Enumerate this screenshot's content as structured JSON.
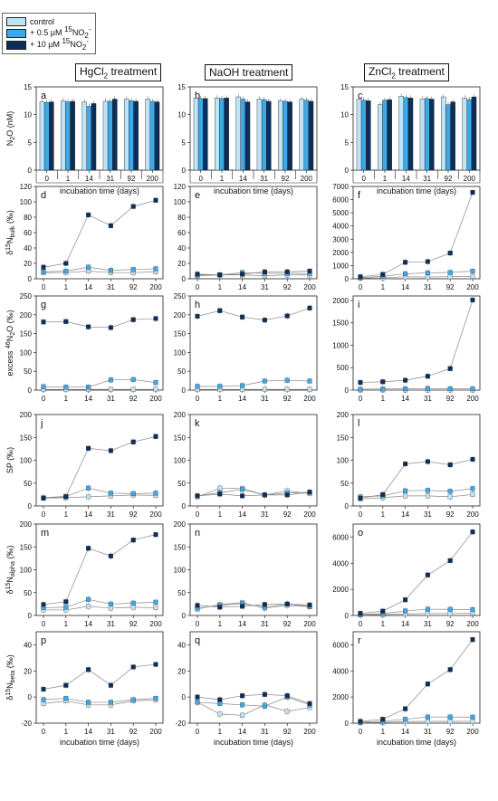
{
  "legend": {
    "items": [
      {
        "label": "control",
        "color": "#bfe4f6"
      },
      {
        "label_parts": [
          "+ 0.5 µM ",
          "15",
          "NO",
          "2",
          "-"
        ],
        "color": "#3fa8e6"
      },
      {
        "label_parts": [
          "+ 10 µM ",
          "15",
          "NO",
          "2",
          "-"
        ],
        "color": "#0d2f57"
      }
    ]
  },
  "column_titles": [
    {
      "main": "HgCl",
      "sub": "2",
      "rest": " treatment"
    },
    {
      "main": "NaOH treatment",
      "sub": "",
      "rest": ""
    },
    {
      "main": "ZnCl",
      "sub": "2",
      "rest": " treatment"
    }
  ],
  "series_colors": {
    "control": "#bfe4f6",
    "low": "#3fa8e6",
    "high": "#0d2f57"
  },
  "x_categories": [
    "0",
    "1",
    "14",
    "31",
    "92",
    "200"
  ],
  "xlabel": "incubation time (days)",
  "chart_data": [
    {
      "panel": "a",
      "type": "bar",
      "ylim": [
        0,
        15
      ],
      "yticks": [
        0,
        5,
        10,
        15
      ],
      "ylabel": "N2O (nM)",
      "categories": [
        "0",
        "1",
        "14",
        "31",
        "92",
        "200"
      ],
      "series": [
        {
          "name": "control",
          "values": [
            12.3,
            12.5,
            12.3,
            12.4,
            12.8,
            12.8
          ]
        },
        {
          "name": "+ 0.5 µM 15NO2-",
          "values": [
            12.2,
            12.3,
            11.5,
            12.4,
            12.5,
            12.4
          ]
        },
        {
          "name": "+ 10 µM 15NO2-",
          "values": [
            12.3,
            12.4,
            12.0,
            12.8,
            12.4,
            12.3
          ]
        }
      ]
    },
    {
      "panel": "b",
      "type": "bar",
      "ylim": [
        0,
        15
      ],
      "yticks": [
        0,
        5,
        10,
        15
      ],
      "categories": [
        "0",
        "1",
        "14",
        "31",
        "92",
        "200"
      ],
      "series": [
        {
          "name": "control",
          "values": [
            13.0,
            13.0,
            13.2,
            12.8,
            12.5,
            12.8
          ]
        },
        {
          "name": "+ 0.5 µM 15NO2-",
          "values": [
            12.9,
            12.9,
            12.8,
            12.7,
            12.4,
            12.6
          ]
        },
        {
          "name": "+ 10 µM 15NO2-",
          "values": [
            12.9,
            13.0,
            12.3,
            12.4,
            12.3,
            12.4
          ]
        }
      ]
    },
    {
      "panel": "c",
      "type": "bar",
      "ylim": [
        0,
        15
      ],
      "yticks": [
        0,
        5,
        10,
        15
      ],
      "categories": [
        "0",
        "1",
        "14",
        "31",
        "92",
        "200"
      ],
      "series": [
        {
          "name": "control",
          "values": [
            12.8,
            11.8,
            13.3,
            12.8,
            13.2,
            13.0
          ]
        },
        {
          "name": "+ 0.5 µM 15NO2-",
          "values": [
            12.6,
            12.6,
            13.1,
            12.9,
            11.8,
            12.7
          ]
        },
        {
          "name": "+ 10 µM 15NO2-",
          "values": [
            12.5,
            12.7,
            13.0,
            12.8,
            12.3,
            13.2
          ]
        }
      ]
    },
    {
      "panel": "d",
      "type": "line",
      "ylim": [
        0,
        120
      ],
      "yticks": [
        0,
        20,
        40,
        60,
        80,
        100,
        120
      ],
      "ylabel": "δ15Nbulk (‰)",
      "categories": [
        "0",
        "1",
        "14",
        "31",
        "92",
        "200"
      ],
      "series": [
        {
          "name": "control",
          "values": [
            8,
            8,
            10,
            8,
            8,
            9
          ]
        },
        {
          "name": "+ 0.5 µM 15NO2-",
          "values": [
            9,
            10,
            15,
            11,
            12,
            13
          ]
        },
        {
          "name": "+ 10 µM 15NO2-",
          "values": [
            15,
            20,
            83,
            69,
            94,
            102
          ]
        }
      ]
    },
    {
      "panel": "e",
      "type": "line",
      "ylim": [
        0,
        120
      ],
      "yticks": [
        0,
        20,
        40,
        60,
        80,
        100,
        120
      ],
      "categories": [
        "0",
        "1",
        "14",
        "31",
        "92",
        "200"
      ],
      "series": [
        {
          "name": "control",
          "values": [
            4,
            5,
            5,
            4,
            5,
            5
          ]
        },
        {
          "name": "+ 0.5 µM 15NO2-",
          "values": [
            5,
            5,
            8,
            7,
            7,
            7
          ]
        },
        {
          "name": "+ 10 µM 15NO2-",
          "values": [
            6,
            5,
            6,
            9,
            9,
            10
          ]
        }
      ]
    },
    {
      "panel": "f",
      "type": "line",
      "ylim": [
        0,
        7000
      ],
      "yticks": [
        0,
        1000,
        2000,
        3000,
        4000,
        5000,
        6000,
        7000
      ],
      "categories": [
        "0",
        "1",
        "14",
        "31",
        "92",
        "200"
      ],
      "series": [
        {
          "name": "control",
          "values": [
            50,
            80,
            150,
            130,
            160,
            180
          ]
        },
        {
          "name": "+ 0.5 µM 15NO2-",
          "values": [
            100,
            180,
            380,
            450,
            480,
            580
          ]
        },
        {
          "name": "+ 10 µM 15NO2-",
          "values": [
            150,
            330,
            1250,
            1300,
            1950,
            6550
          ]
        }
      ]
    },
    {
      "panel": "g",
      "type": "line",
      "ylim": [
        0,
        250
      ],
      "yticks": [
        0,
        50,
        100,
        150,
        200,
        250
      ],
      "ylabel": "excess 46N2O (‰)",
      "categories": [
        "0",
        "1",
        "14",
        "31",
        "92",
        "200"
      ],
      "series": [
        {
          "name": "control",
          "values": [
            2,
            2,
            2,
            2,
            2,
            2
          ]
        },
        {
          "name": "+ 0.5 µM 15NO2-",
          "values": [
            9,
            8,
            8,
            27,
            28,
            20
          ]
        },
        {
          "name": "+ 10 µM 15NO2-",
          "values": [
            181,
            182,
            168,
            166,
            187,
            190
          ]
        }
      ]
    },
    {
      "panel": "h",
      "type": "line",
      "ylim": [
        0,
        250
      ],
      "yticks": [
        0,
        50,
        100,
        150,
        200,
        250
      ],
      "categories": [
        "0",
        "1",
        "14",
        "31",
        "92",
        "200"
      ],
      "series": [
        {
          "name": "control",
          "values": [
            2,
            2,
            2,
            2,
            2,
            2
          ]
        },
        {
          "name": "+ 0.5 µM 15NO2-",
          "values": [
            10,
            10,
            12,
            24,
            26,
            24
          ]
        },
        {
          "name": "+ 10 µM 15NO2-",
          "values": [
            196,
            211,
            194,
            186,
            197,
            218
          ]
        }
      ]
    },
    {
      "panel": "i",
      "type": "line",
      "ylim": [
        0,
        2100
      ],
      "yticks": [
        0,
        500,
        1000,
        1500,
        2000
      ],
      "categories": [
        "0",
        "1",
        "14",
        "31",
        "92",
        "200"
      ],
      "series": [
        {
          "name": "control",
          "values": [
            5,
            5,
            5,
            5,
            5,
            5
          ]
        },
        {
          "name": "+ 0.5 µM 15NO2-",
          "values": [
            20,
            25,
            30,
            35,
            30,
            30
          ]
        },
        {
          "name": "+ 10 µM 15NO2-",
          "values": [
            170,
            185,
            220,
            310,
            480,
            2010
          ]
        }
      ]
    },
    {
      "panel": "j",
      "type": "line",
      "ylim": [
        0,
        200
      ],
      "yticks": [
        0,
        50,
        100,
        150,
        200
      ],
      "ylabel": "SP (‰)",
      "categories": [
        "0",
        "1",
        "14",
        "31",
        "92",
        "200"
      ],
      "series": [
        {
          "name": "control",
          "values": [
            17,
            18,
            20,
            22,
            24,
            23
          ]
        },
        {
          "name": "+ 0.5 µM 15NO2-",
          "values": [
            18,
            21,
            39,
            28,
            27,
            28
          ]
        },
        {
          "name": "+ 10 µM 15NO2-",
          "values": [
            17,
            20,
            126,
            121,
            140,
            152
          ]
        }
      ]
    },
    {
      "panel": "k",
      "type": "line",
      "ylim": [
        0,
        200
      ],
      "yticks": [
        0,
        50,
        100,
        150,
        200
      ],
      "categories": [
        "0",
        "1",
        "14",
        "31",
        "92",
        "200"
      ],
      "series": [
        {
          "name": "control",
          "values": [
            20,
            39,
            38,
            24,
            33,
            27
          ]
        },
        {
          "name": "+ 0.5 µM 15NO2-",
          "values": [
            22,
            29,
            36,
            24,
            28,
            30
          ]
        },
        {
          "name": "+ 10 µM 15NO2-",
          "values": [
            22,
            26,
            22,
            24,
            24,
            30
          ]
        }
      ]
    },
    {
      "panel": "l",
      "type": "line",
      "ylim": [
        0,
        200
      ],
      "yticks": [
        0,
        50,
        100,
        150,
        200
      ],
      "categories": [
        "0",
        "1",
        "14",
        "31",
        "92",
        "200"
      ],
      "series": [
        {
          "name": "control",
          "values": [
            15,
            18,
            22,
            22,
            20,
            25
          ]
        },
        {
          "name": "+ 0.5 µM 15NO2-",
          "values": [
            20,
            22,
            33,
            34,
            32,
            38
          ]
        },
        {
          "name": "+ 10 µM 15NO2-",
          "values": [
            17,
            25,
            92,
            97,
            90,
            102
          ]
        }
      ]
    },
    {
      "panel": "m",
      "type": "line",
      "ylim": [
        0,
        200
      ],
      "yticks": [
        0,
        50,
        100,
        150,
        200
      ],
      "ylabel": "δ15Nalpha (‰)",
      "categories": [
        "0",
        "1",
        "14",
        "31",
        "92",
        "200"
      ],
      "series": [
        {
          "name": "control",
          "values": [
            12,
            12,
            20,
            16,
            18,
            17
          ]
        },
        {
          "name": "+ 0.5 µM 15NO2-",
          "values": [
            17,
            18,
            35,
            25,
            27,
            29
          ]
        },
        {
          "name": "+ 10 µM 15NO2-",
          "values": [
            24,
            30,
            147,
            130,
            165,
            177
          ]
        }
      ]
    },
    {
      "panel": "n",
      "type": "line",
      "ylim": [
        0,
        200
      ],
      "yticks": [
        0,
        50,
        100,
        150,
        200
      ],
      "categories": [
        "0",
        "1",
        "14",
        "31",
        "92",
        "200"
      ],
      "series": [
        {
          "name": "control",
          "values": [
            14,
            24,
            28,
            16,
            22,
            19
          ]
        },
        {
          "name": "+ 0.5 µM 15NO2-",
          "values": [
            16,
            22,
            26,
            18,
            25,
            20
          ]
        },
        {
          "name": "+ 10 µM 15NO2-",
          "values": [
            22,
            18,
            20,
            24,
            25,
            23
          ]
        }
      ]
    },
    {
      "panel": "o",
      "type": "line",
      "ylim": [
        0,
        7000
      ],
      "yticks": [
        0,
        2000,
        4000,
        6000
      ],
      "categories": [
        "0",
        "1",
        "14",
        "31",
        "92",
        "200"
      ],
      "series": [
        {
          "name": "control",
          "values": [
            40,
            60,
            120,
            150,
            160,
            180
          ]
        },
        {
          "name": "+ 0.5 µM 15NO2-",
          "values": [
            80,
            140,
            350,
            480,
            470,
            450
          ]
        },
        {
          "name": "+ 10 µM 15NO2-",
          "values": [
            160,
            330,
            1200,
            3100,
            4200,
            6400
          ]
        }
      ]
    },
    {
      "panel": "p",
      "type": "line",
      "ylim": [
        -20,
        50
      ],
      "yticks": [
        -20,
        0,
        20,
        40
      ],
      "ylabel": "δ15Nbeta (‰)",
      "categories": [
        "0",
        "1",
        "14",
        "31",
        "92",
        "200"
      ],
      "series": [
        {
          "name": "control",
          "values": [
            -5,
            -3,
            -6,
            -6,
            -3,
            -2
          ]
        },
        {
          "name": "+ 0.5 µM 15NO2-",
          "values": [
            -2,
            -1,
            -4,
            -4,
            -2,
            -1
          ]
        },
        {
          "name": "+ 10 µM 15NO2-",
          "values": [
            6,
            9,
            21,
            9,
            23,
            25
          ]
        }
      ]
    },
    {
      "panel": "q",
      "type": "line",
      "ylim": [
        -20,
        50
      ],
      "yticks": [
        -20,
        0,
        20,
        40
      ],
      "categories": [
        "0",
        "1",
        "14",
        "31",
        "92",
        "200"
      ],
      "series": [
        {
          "name": "control",
          "values": [
            -4,
            -13,
            -14,
            -6,
            -11,
            -8
          ]
        },
        {
          "name": "+ 0.5 µM 15NO2-",
          "values": [
            -4,
            -5,
            -6,
            -7,
            0,
            -6
          ]
        },
        {
          "name": "+ 10 µM 15NO2-",
          "values": [
            0,
            -2,
            1,
            2,
            1,
            -5
          ]
        }
      ]
    },
    {
      "panel": "r",
      "type": "line",
      "ylim": [
        0,
        7000
      ],
      "yticks": [
        0,
        2000,
        4000,
        6000
      ],
      "categories": [
        "0",
        "1",
        "14",
        "31",
        "92",
        "200"
      ],
      "series": [
        {
          "name": "control",
          "values": [
            40,
            60,
            120,
            140,
            140,
            150
          ]
        },
        {
          "name": "+ 0.5 µM 15NO2-",
          "values": [
            80,
            150,
            300,
            480,
            470,
            460
          ]
        },
        {
          "name": "+ 10 µM 15NO2-",
          "values": [
            140,
            300,
            1100,
            3000,
            4100,
            6400
          ]
        }
      ]
    }
  ]
}
